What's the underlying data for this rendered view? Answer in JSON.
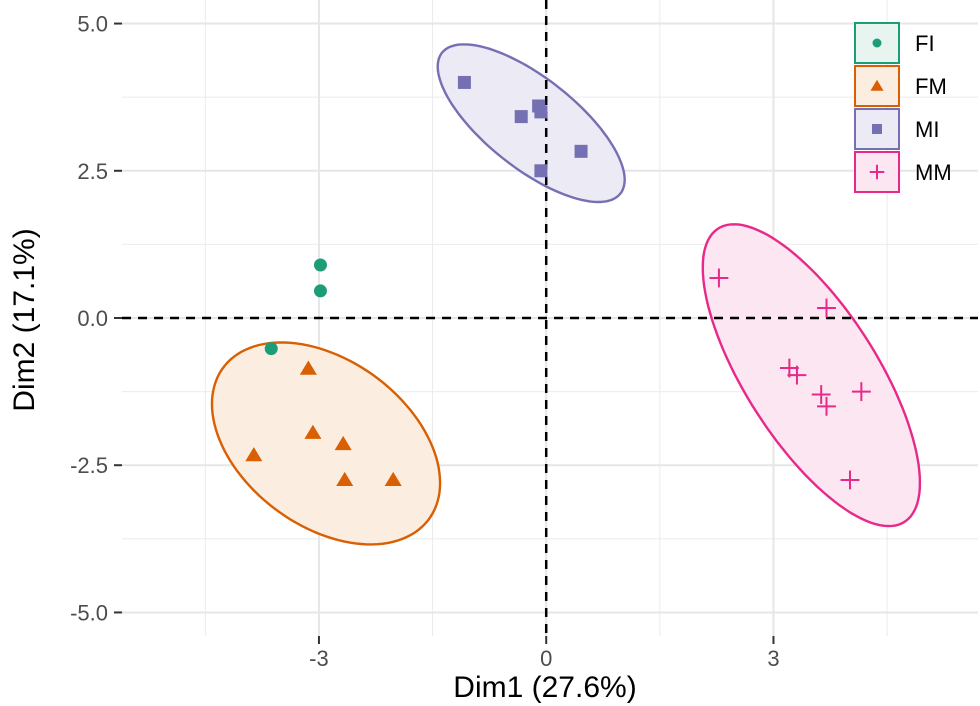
{
  "chart_data": {
    "type": "scatter",
    "title": "",
    "xlabel": "Dim1 (27.6%)",
    "ylabel": "Dim2 (17.1%)",
    "xlim": [
      -5.6,
      5.7
    ],
    "ylim": [
      -5.4,
      5.4
    ],
    "x_ticks": [
      -3,
      0,
      3
    ],
    "x_tick_labels": [
      "-3",
      "0",
      "3"
    ],
    "y_ticks": [
      -5,
      -2.5,
      0,
      2.5,
      5
    ],
    "y_tick_labels": [
      "-5.0",
      "-2.5",
      "0.0",
      "2.5",
      "5.0"
    ],
    "grid": true,
    "reference_lines": {
      "x": 0,
      "y": 0,
      "style": "dashed"
    },
    "legend_position": "top-right",
    "series": [
      {
        "name": "FI",
        "marker": "circle",
        "color": "#1b9e77",
        "ellipse": false,
        "points": [
          [
            -2.98,
            0.9
          ],
          [
            -2.98,
            0.46
          ],
          [
            -3.63,
            -0.52
          ]
        ]
      },
      {
        "name": "FM",
        "marker": "triangle",
        "color": "#d95f02",
        "fill": "#fbeee0",
        "ellipse": true,
        "points": [
          [
            -3.14,
            -0.86
          ],
          [
            -3.08,
            -1.95
          ],
          [
            -2.68,
            -2.14
          ],
          [
            -2.66,
            -2.75
          ],
          [
            -2.02,
            -2.75
          ],
          [
            -3.86,
            -2.33
          ]
        ]
      },
      {
        "name": "MI",
        "marker": "square",
        "color": "#7570b3",
        "fill": "#eceaf4",
        "ellipse": true,
        "points": [
          [
            -1.08,
            4.0
          ],
          [
            -0.33,
            3.42
          ],
          [
            -0.1,
            3.6
          ],
          [
            -0.07,
            3.5
          ],
          [
            -0.07,
            2.5
          ],
          [
            0.46,
            2.83
          ]
        ]
      },
      {
        "name": "MM",
        "marker": "plus",
        "color": "#e7298a",
        "fill": "#fbe6f1",
        "ellipse": true,
        "points": [
          [
            2.28,
            0.68
          ],
          [
            3.7,
            0.17
          ],
          [
            3.21,
            -0.85
          ],
          [
            3.31,
            -0.97
          ],
          [
            3.63,
            -1.3
          ],
          [
            3.7,
            -1.5
          ],
          [
            4.16,
            -1.25
          ],
          [
            4.01,
            -2.75
          ]
        ]
      }
    ]
  }
}
